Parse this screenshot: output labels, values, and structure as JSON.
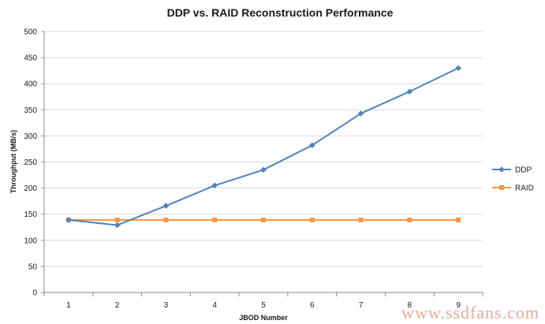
{
  "chart_data": {
    "type": "line",
    "title": "DDP vs. RAID Reconstruction Performance",
    "xlabel": "JBOD Number",
    "ylabel": "Throughput (MB/s)",
    "categories": [
      "1",
      "2",
      "3",
      "4",
      "5",
      "6",
      "7",
      "8",
      "9"
    ],
    "ylim": [
      0,
      500
    ],
    "yticks": [
      0,
      50,
      100,
      150,
      200,
      250,
      300,
      350,
      400,
      450,
      500
    ],
    "grid": true,
    "legend_position": "right",
    "series": [
      {
        "name": "DDP",
        "color": "#4f81bd",
        "marker": "diamond",
        "values": [
          139,
          129,
          166,
          205,
          235,
          282,
          343,
          385,
          430
        ]
      },
      {
        "name": "RAID",
        "color": "#f79646",
        "marker": "square",
        "values": [
          139,
          139,
          139,
          139,
          139,
          139,
          139,
          139,
          139
        ]
      }
    ]
  },
  "watermark": "www.ssdfans.com"
}
